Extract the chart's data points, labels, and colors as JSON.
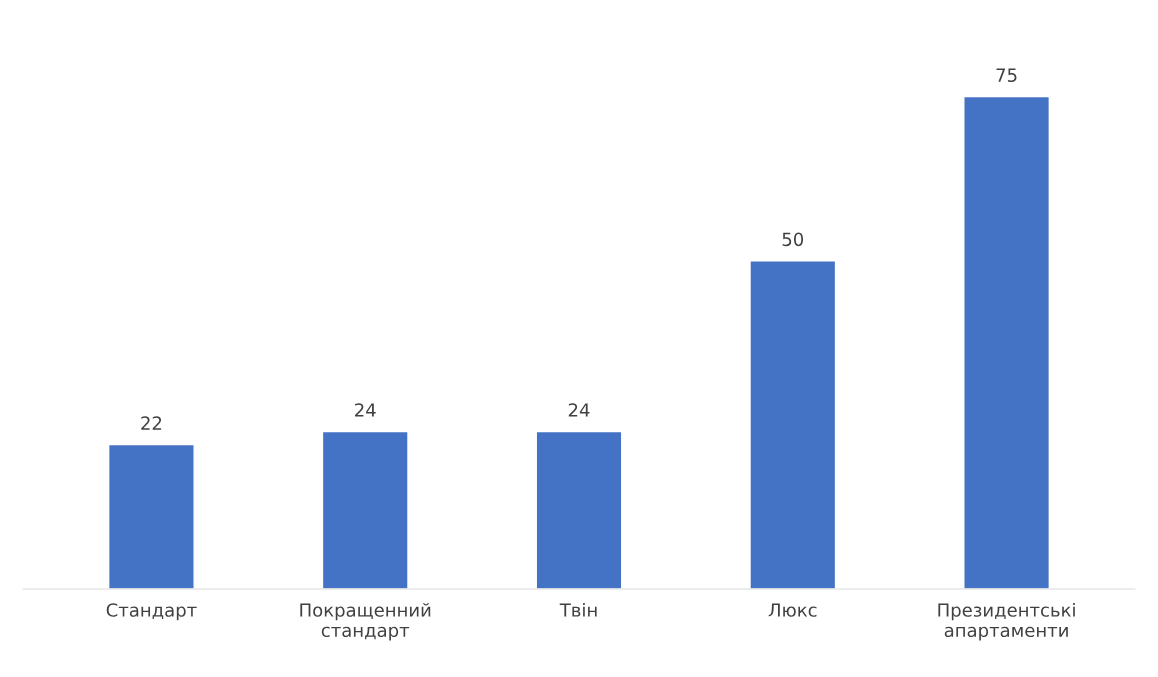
{
  "chart_data": {
    "type": "bar",
    "categories": [
      "Стандарт",
      "Покращенний стандарт",
      "Твін",
      "Люкс",
      "Президентські апартаменти"
    ],
    "values": [
      22,
      24,
      24,
      50,
      75
    ],
    "color": "#4472c4",
    "data_labels": true,
    "grid": false,
    "legend": false
  }
}
